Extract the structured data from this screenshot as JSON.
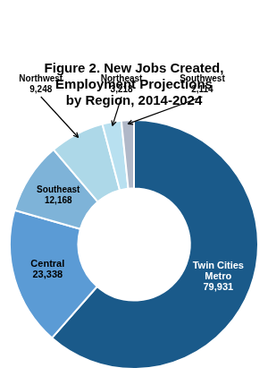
{
  "chart_data": {
    "type": "doughnut",
    "title": "Figure 2. New Jobs Created,\nEmployment Projections\nby Region, 2014-2024",
    "categories": [
      "Twin Cities\nMetro",
      "Central",
      "Southeast",
      "Northwest",
      "Northeast",
      "Southwest"
    ],
    "values": [
      79931,
      23338,
      12168,
      9248,
      3218,
      2114
    ],
    "value_labels": [
      "79,931",
      "23,338",
      "12,168",
      "9,248",
      "3,218",
      "2,114"
    ],
    "colors": [
      "#1a5a8a",
      "#5b9bd5",
      "#7eb3d8",
      "#add8e8",
      "#b8e0f0",
      "#b0b8c8"
    ],
    "data_labels": true
  }
}
